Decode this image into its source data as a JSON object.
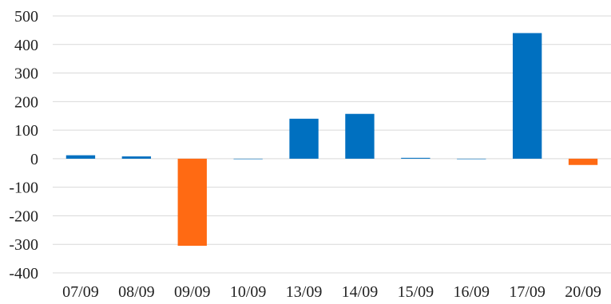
{
  "chart_data": {
    "type": "bar",
    "title": "",
    "xlabel": "",
    "ylabel": "",
    "categories": [
      "07/09",
      "08/09",
      "09/09",
      "10/09",
      "13/09",
      "14/09",
      "15/09",
      "16/09",
      "17/09",
      "20/09"
    ],
    "values": [
      12,
      8,
      -305,
      0,
      140,
      157,
      3,
      0,
      440,
      -22
    ],
    "ylim": [
      -400,
      500
    ],
    "yticks": [
      500,
      400,
      300,
      200,
      100,
      0,
      -100,
      -200,
      -300,
      -400
    ],
    "ytick_labels": [
      "500",
      "400",
      "300",
      "200",
      "100",
      "0",
      "-100",
      "-200",
      "-300",
      "-400"
    ],
    "grid": true,
    "legend": "none",
    "colors": {
      "positive": "#0070c0",
      "negative": "#ff6a13",
      "grid": "#d9d9d9"
    }
  }
}
